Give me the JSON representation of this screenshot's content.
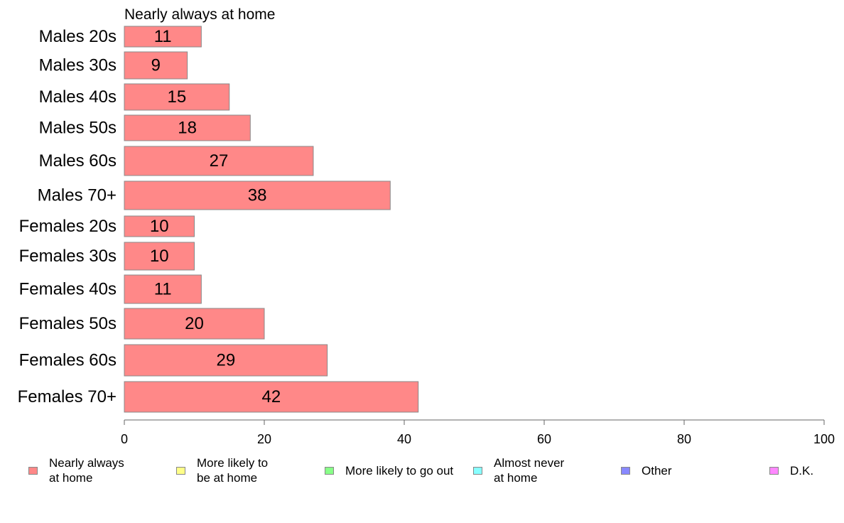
{
  "chart_data": {
    "type": "bar",
    "orientation": "horizontal",
    "title": "Nearly always at home",
    "xlabel": "",
    "ylabel": "",
    "xlim": [
      0,
      100
    ],
    "x_ticks": [
      0,
      20,
      40,
      60,
      80,
      100
    ],
    "grid": false,
    "legend_position": "bottom",
    "categories": [
      "Males 20s",
      "Males 30s",
      "Males 40s",
      "Males 50s",
      "Males 60s",
      "Males 70+",
      "Females 20s",
      "Females 30s",
      "Females 40s",
      "Females 50s",
      "Females 60s",
      "Females 70+"
    ],
    "series": [
      {
        "name": "Nearly always at home",
        "color": "#ff8888",
        "values": [
          11,
          9,
          15,
          18,
          27,
          38,
          10,
          10,
          11,
          20,
          29,
          42
        ]
      }
    ],
    "legend": [
      {
        "label": "Nearly always\nat home",
        "color": "#ff8888"
      },
      {
        "label": "More likely to\nbe at home",
        "color": "#ffff88"
      },
      {
        "label": "More likely to go out",
        "color": "#88ff88"
      },
      {
        "label": "Almost never\nat home",
        "color": "#88ffff"
      },
      {
        "label": "Other",
        "color": "#8888ff"
      },
      {
        "label": "D.K.",
        "color": "#ff88ff"
      }
    ]
  }
}
